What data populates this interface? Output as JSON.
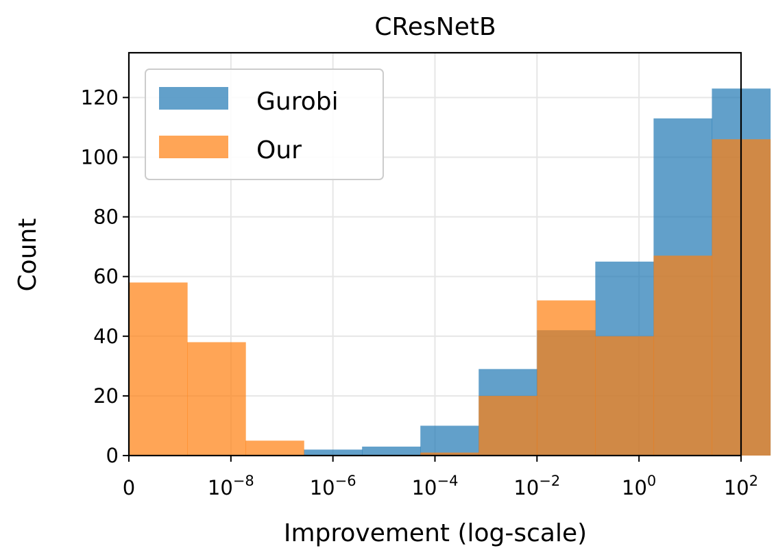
{
  "chart_data": {
    "type": "bar",
    "title": "CResNetB",
    "xlabel": "Improvement (log-scale)",
    "ylabel": "Count",
    "ylim": [
      0,
      135
    ],
    "x_scale": "log",
    "yticks": [
      0,
      20,
      40,
      60,
      80,
      100,
      120
    ],
    "xticks": [
      {
        "base": "0",
        "exp": ""
      },
      {
        "base": "10",
        "exp": "−8"
      },
      {
        "base": "10",
        "exp": "−6"
      },
      {
        "base": "10",
        "exp": "−4"
      },
      {
        "base": "10",
        "exp": "−2"
      },
      {
        "base": "10",
        "exp": "0"
      },
      {
        "base": "10",
        "exp": "2"
      }
    ],
    "grid": true,
    "legend_position": "top-left",
    "bin_edges": [
      "0",
      "1e-8.3",
      "1e-7.4",
      "1e-6.6",
      "1e-5.7",
      "1e-4.9",
      "1e-4.0",
      "1e-3.1",
      "1e-2.3",
      "1e-1.4",
      "1e-0.6"
    ],
    "series": [
      {
        "name": "Gurobi",
        "color": "#1f77b4",
        "values": [
          0,
          0,
          0,
          2,
          3,
          10,
          29,
          42,
          65,
          113,
          123
        ]
      },
      {
        "name": "Our",
        "color": "#ff7f0e",
        "values": [
          58,
          38,
          5,
          0,
          0,
          1,
          20,
          52,
          40,
          67,
          106
        ]
      }
    ]
  }
}
